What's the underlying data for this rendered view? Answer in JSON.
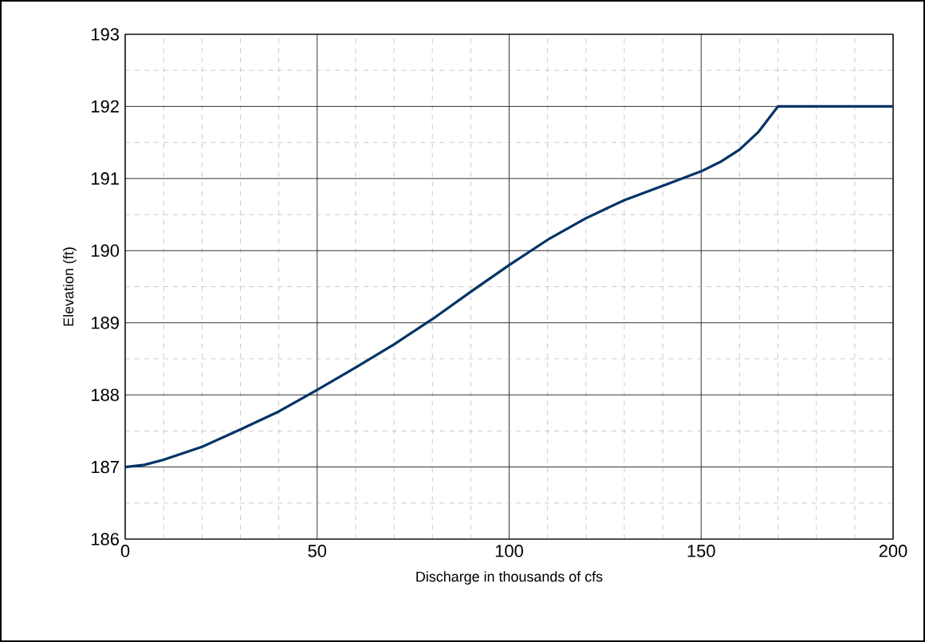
{
  "chart_data": {
    "type": "line",
    "xlabel": "Discharge in thousands of cfs",
    "ylabel": "Elevation (ft)",
    "x": [
      0,
      5,
      10,
      20,
      30,
      40,
      50,
      60,
      70,
      80,
      90,
      100,
      110,
      120,
      130,
      140,
      150,
      155,
      160,
      165,
      170,
      200
    ],
    "series": [
      {
        "color": "#003366",
        "values": [
          187.0,
          187.03,
          187.1,
          187.28,
          187.52,
          187.77,
          188.07,
          188.38,
          188.7,
          189.05,
          189.43,
          189.8,
          190.15,
          190.45,
          190.7,
          190.9,
          191.1,
          191.23,
          191.4,
          191.65,
          192.0,
          192.0
        ]
      }
    ],
    "xlim": [
      0,
      200
    ],
    "ylim": [
      186,
      193
    ],
    "xticks": [
      0,
      {
        "value": 10,
        "label": null
      },
      {
        "value": 20,
        "label": null
      },
      {
        "value": 30,
        "label": null
      },
      {
        "value": 40,
        "label": null
      },
      50,
      {
        "value": 60,
        "label": null
      },
      {
        "value": 70,
        "label": null
      },
      {
        "value": 80,
        "label": null
      },
      {
        "value": 90,
        "label": null
      },
      100,
      {
        "value": 110,
        "label": null
      },
      {
        "value": 120,
        "label": null
      },
      {
        "value": 130,
        "label": null
      },
      {
        "value": 140,
        "label": null
      },
      150,
      {
        "value": 160,
        "label": null
      },
      {
        "value": 170,
        "label": null
      },
      {
        "value": 180,
        "label": null
      },
      {
        "value": 190,
        "label": null
      },
      200
    ],
    "yticks": [
      186,
      {
        "value": 186.5,
        "label": null
      },
      187,
      {
        "value": 187.5,
        "label": null
      },
      188,
      {
        "value": 188.5,
        "label": null
      },
      189,
      {
        "value": 189.5,
        "label": null
      },
      190,
      {
        "value": 190.5,
        "label": null
      },
      191,
      {
        "value": 191.5,
        "label": null
      },
      192,
      {
        "value": 192.5,
        "label": null
      },
      193
    ],
    "grid": true,
    "marker": "none",
    "line_style": "solid"
  }
}
